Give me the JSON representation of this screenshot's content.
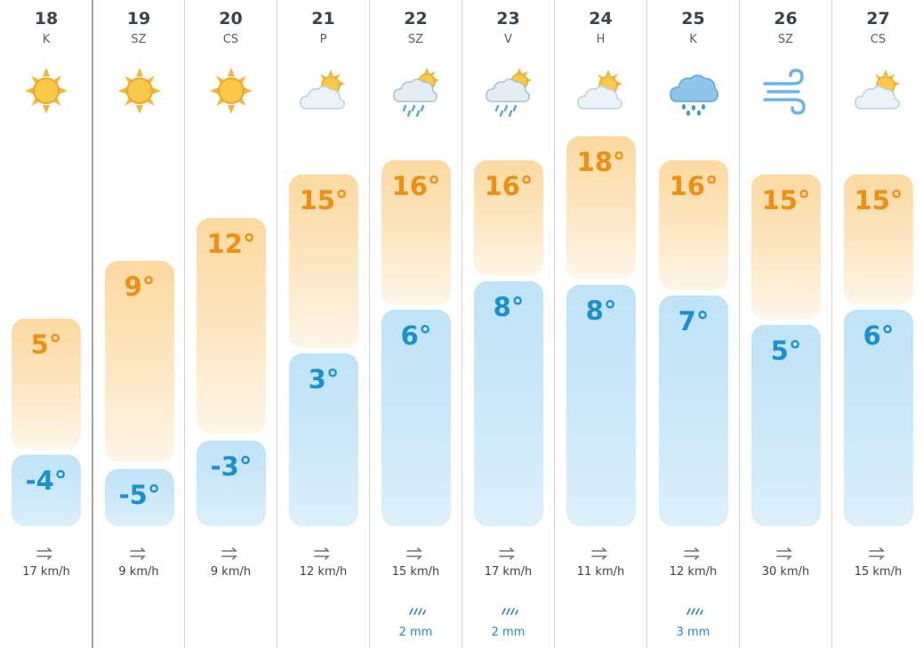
{
  "colors": {
    "high_text": "#ef8f12",
    "low_text": "#1a8fd1",
    "separator": "#cfd6dc"
  },
  "days": [
    {
      "date": "18",
      "dow": "K",
      "icon": "sun-icon",
      "high": "5°",
      "low": "-4°",
      "wind": "17 km/h",
      "precip": ""
    },
    {
      "date": "19",
      "dow": "SZ",
      "icon": "sun-icon",
      "high": "9°",
      "low": "-5°",
      "wind": "9 km/h",
      "precip": ""
    },
    {
      "date": "20",
      "dow": "CS",
      "icon": "sun-icon",
      "high": "12°",
      "low": "-3°",
      "wind": "9 km/h",
      "precip": ""
    },
    {
      "date": "21",
      "dow": "P",
      "icon": "partly-cloudy-icon",
      "high": "15°",
      "low": "3°",
      "wind": "12 km/h",
      "precip": ""
    },
    {
      "date": "22",
      "dow": "SZ",
      "icon": "sun-rain-icon",
      "high": "16°",
      "low": "6°",
      "wind": "15 km/h",
      "precip": "2 mm"
    },
    {
      "date": "23",
      "dow": "V",
      "icon": "sun-rain-icon",
      "high": "16°",
      "low": "8°",
      "wind": "17 km/h",
      "precip": "2 mm"
    },
    {
      "date": "24",
      "dow": "H",
      "icon": "partly-cloudy-icon",
      "high": "18°",
      "low": "8°",
      "wind": "11 km/h",
      "precip": ""
    },
    {
      "date": "25",
      "dow": "K",
      "icon": "rain-cloud-icon",
      "high": "16°",
      "low": "7°",
      "wind": "12 km/h",
      "precip": "3 mm"
    },
    {
      "date": "26",
      "dow": "SZ",
      "icon": "strong-wind-icon",
      "high": "15°",
      "low": "5°",
      "wind": "30 km/h",
      "precip": ""
    },
    {
      "date": "27",
      "dow": "CS",
      "icon": "partly-cloudy-icon",
      "high": "15°",
      "low": "6°",
      "wind": "15 km/h",
      "precip": ""
    }
  ]
}
